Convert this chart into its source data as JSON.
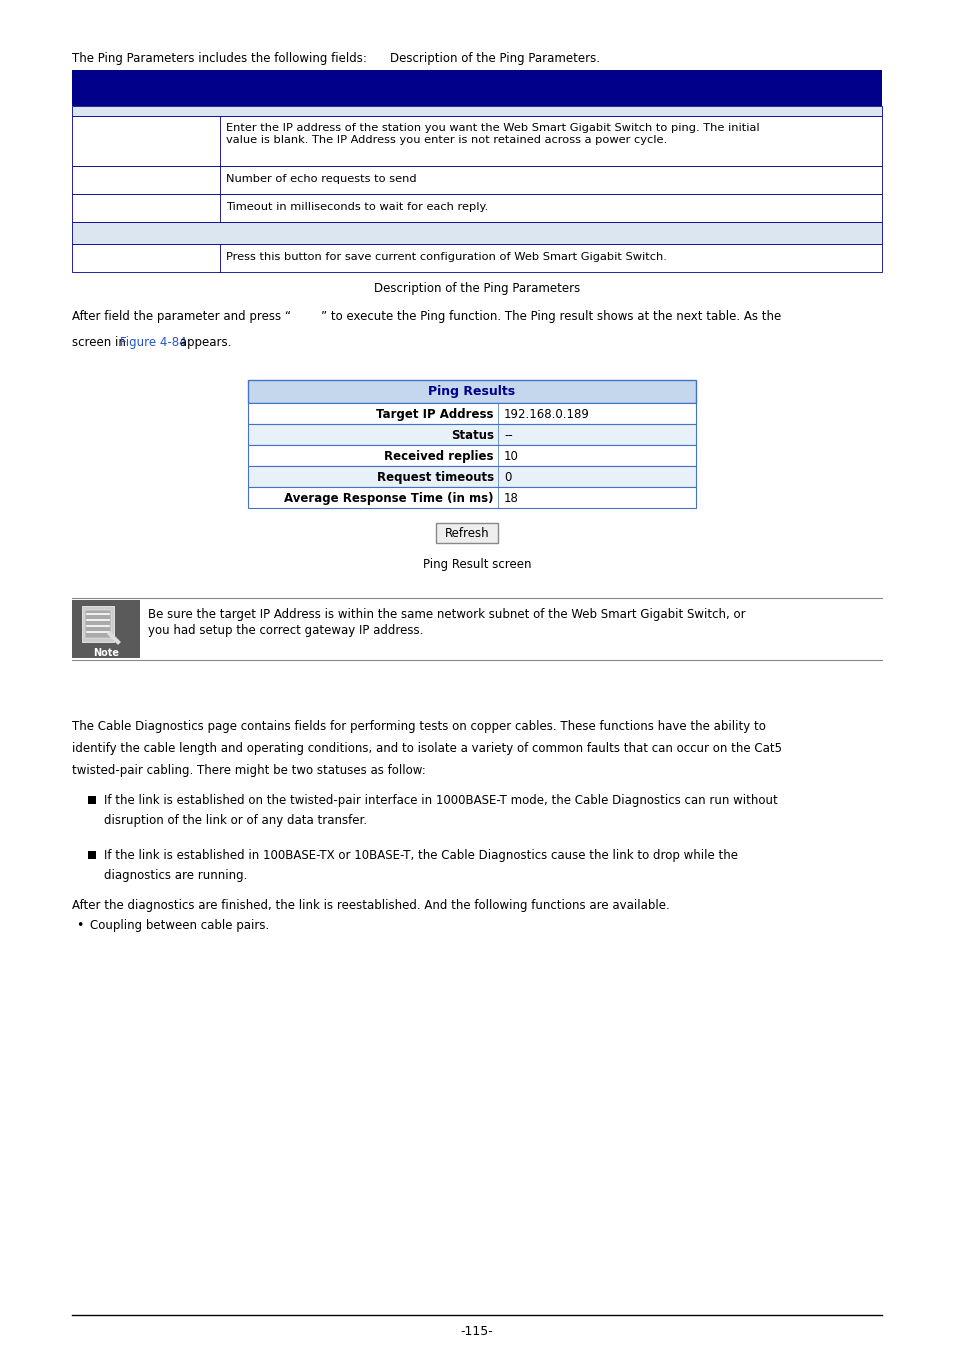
{
  "bg_color": "#ffffff",
  "dark_blue": "#00008B",
  "light_blue_table": "#dce6f1",
  "table_border": "#00008B",
  "ping_header_bg": "#c5d7ed",
  "ping_alt_bg": "#e8f0f8",
  "note_bg": "#5a5a5a",
  "intro_text": "The Ping Parameters includes the following fields:",
  "intro_text2": "Description of the Ping Parameters.",
  "table_caption": "Description of the Ping Parameters",
  "after_text1": "After field the parameter and press “        ” to execute the Ping function. The Ping result shows at the next table. As the",
  "screen_text_pre": "screen in ",
  "figure_link": "Figure 4-84",
  "screen_text_post": " appears.",
  "ping_results_title": "Ping Results",
  "ping_results_rows": [
    {
      "label": "Target IP Address",
      "value": "192.168.0.189"
    },
    {
      "label": "Status",
      "value": "--"
    },
    {
      "label": "Received replies",
      "value": "10"
    },
    {
      "label": "Request timeouts",
      "value": "0"
    },
    {
      "label": "Average Response Time (in ms)",
      "value": "18"
    }
  ],
  "refresh_button": "Refresh",
  "ping_caption": "Ping Result screen",
  "note_text_line1": "Be sure the target IP Address is within the same network subnet of the Web Smart Gigabit Switch, or",
  "note_text_line2": "you had setup the correct gateway IP address.",
  "cable_diag_text1": "The Cable Diagnostics page contains fields for performing tests on copper cables. These functions have the ability to",
  "cable_diag_text2": "identify the cable length and operating conditions, and to isolate a variety of common faults that can occur on the Cat5",
  "cable_diag_text3": "twisted-pair cabling. There might be two statuses as follow:",
  "bullet1_line1": "If the link is established on the twisted-pair interface in 1000BASE-T mode, the Cable Diagnostics can run without",
  "bullet1_line2": "disruption of the link or of any data transfer.",
  "bullet2_line1": "If the link is established in 100BASE-TX or 10BASE-T, the Cable Diagnostics cause the link to drop while the",
  "bullet2_line2": "diagnostics are running.",
  "after_diag_text": "After the diagnostics are finished, the link is reestablished. And the following functions are available.",
  "coupling_text": "Coupling between cable pairs.",
  "page_number": "-115-"
}
